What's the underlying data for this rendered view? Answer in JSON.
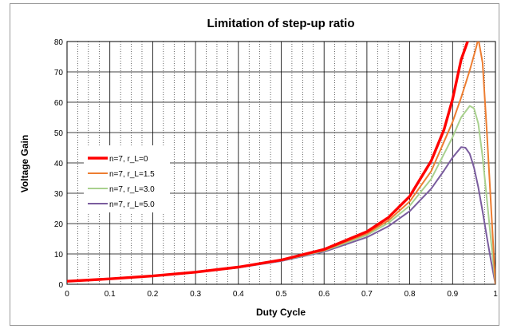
{
  "chart_data": {
    "type": "line",
    "title": "Limitation of step-up ratio",
    "xlabel": "Duty Cycle",
    "ylabel": "Voltage Gain",
    "xlim": [
      0,
      1
    ],
    "ylim": [
      0,
      80
    ],
    "x_ticks": [
      "0",
      "0.1",
      "0.2",
      "0.3",
      "0.4",
      "0.5",
      "0.6",
      "0.7",
      "0.8",
      "0.9",
      "1"
    ],
    "y_ticks": [
      "0",
      "10",
      "20",
      "30",
      "40",
      "50",
      "60",
      "70",
      "80"
    ],
    "grid": "on",
    "legend_position": "left",
    "series": [
      {
        "name": "n=7, r_L=0",
        "color": "#ff0000",
        "x": [
          0,
          0.1,
          0.2,
          0.3,
          0.4,
          0.5,
          0.6,
          0.7,
          0.75,
          0.8,
          0.85,
          0.88,
          0.9,
          0.92,
          0.94
        ],
        "values": [
          1.0,
          1.78,
          2.75,
          4.0,
          5.67,
          8.0,
          11.5,
          17.33,
          22.0,
          29.0,
          40.67,
          51.0,
          61.0,
          74.0,
          82.0
        ]
      },
      {
        "name": "n=7, r_L=1.5",
        "color": "#ed7d31",
        "x": [
          0,
          0.1,
          0.2,
          0.3,
          0.4,
          0.5,
          0.6,
          0.7,
          0.75,
          0.8,
          0.85,
          0.9,
          0.92,
          0.94,
          0.955,
          0.96,
          0.97,
          0.98,
          1.0
        ],
        "values": [
          1.0,
          1.78,
          2.74,
          3.98,
          5.62,
          7.9,
          11.2,
          16.7,
          21.0,
          27.3,
          37.3,
          53.5,
          61.5,
          70.5,
          78.0,
          81.0,
          73.0,
          50.0,
          0
        ]
      },
      {
        "name": "n=7, r_L=3.0",
        "color": "#a9d18e",
        "x": [
          0,
          0.1,
          0.2,
          0.3,
          0.4,
          0.5,
          0.6,
          0.7,
          0.75,
          0.8,
          0.85,
          0.9,
          0.92,
          0.94,
          0.95,
          0.96,
          0.97,
          0.98,
          0.99,
          1.0
        ],
        "values": [
          1.0,
          1.77,
          2.73,
          3.95,
          5.56,
          7.8,
          11.0,
          16.2,
          20.2,
          25.9,
          34.7,
          48.5,
          55.0,
          58.8,
          58.0,
          53.0,
          42.0,
          28.0,
          14.0,
          0
        ]
      },
      {
        "name": "n=7, r_L=5.0",
        "color": "#7a5c9e",
        "x": [
          0,
          0.1,
          0.2,
          0.3,
          0.4,
          0.5,
          0.6,
          0.7,
          0.75,
          0.8,
          0.85,
          0.88,
          0.9,
          0.92,
          0.93,
          0.94,
          0.95,
          0.96,
          0.97,
          0.98,
          0.99,
          1.0
        ],
        "values": [
          1.0,
          1.77,
          2.72,
          3.92,
          5.5,
          7.65,
          10.7,
          15.5,
          19.1,
          24.1,
          31.5,
          37.5,
          41.8,
          45.2,
          45.0,
          43.0,
          38.5,
          32.0,
          24.0,
          15.5,
          7.5,
          0
        ]
      }
    ]
  }
}
